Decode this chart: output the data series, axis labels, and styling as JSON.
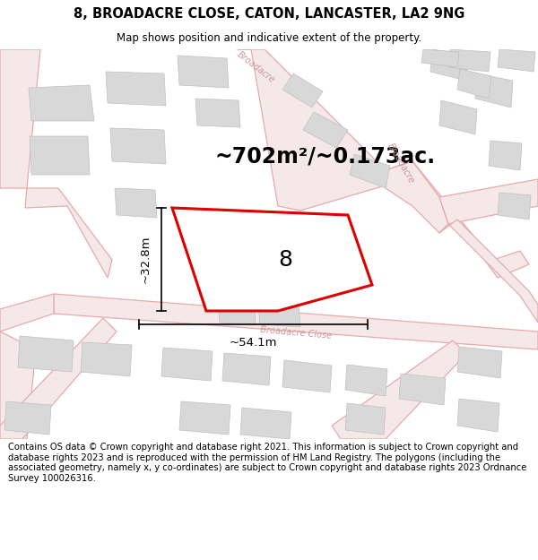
{
  "title": "8, BROADACRE CLOSE, CATON, LANCASTER, LA2 9NG",
  "subtitle": "Map shows position and indicative extent of the property.",
  "area_text": "~702m²/~0.173ac.",
  "width_label": "~54.1m",
  "height_label": "~32.8m",
  "plot_number": "8",
  "bg_color": "#ffffff",
  "map_bg": "#f8f8f8",
  "road_line_color": "#e8aaaa",
  "road_fill_color": "#f5e8e8",
  "building_fill": "#d8d8d8",
  "building_edge": "#c0c0c0",
  "prop_fill": "#ffffff",
  "prop_edge": "#dd0000",
  "road_label_color": "#cc9999",
  "dim_color": "#000000",
  "footer_text": "Contains OS data © Crown copyright and database right 2021. This information is subject to Crown copyright and database rights 2023 and is reproduced with the permission of HM Land Registry. The polygons (including the associated geometry, namely x, y co-ordinates) are subject to Crown copyright and database rights 2023 Ordnance Survey 100026316.",
  "title_fontsize": 10.5,
  "subtitle_fontsize": 8.5,
  "footer_fontsize": 7.2,
  "area_fontsize": 17,
  "plot_num_fontsize": 18,
  "dim_fontsize": 9.5,
  "road_label_fontsize": 7,
  "road_lw": 0.9,
  "building_lw": 0.5,
  "prop_lw": 2.2
}
